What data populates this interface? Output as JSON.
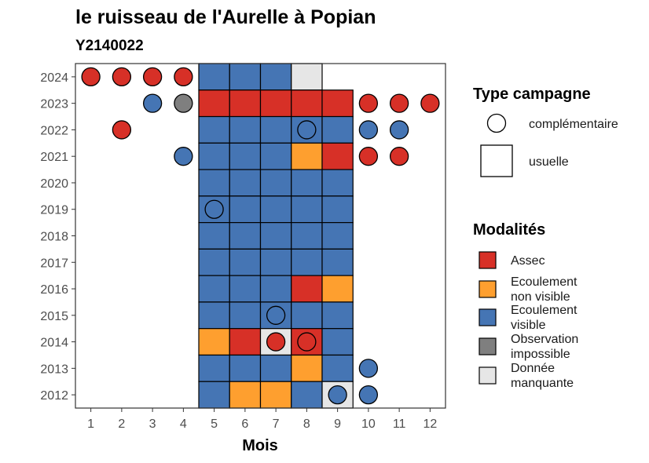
{
  "chart_data": {
    "type": "heatmap",
    "title": "le ruisseau de l'Aurelle à Popian",
    "subtitle": "Y2140022",
    "xlabel": "Mois",
    "ylabel": "",
    "x_ticks": [
      "1",
      "2",
      "3",
      "4",
      "5",
      "6",
      "7",
      "8",
      "9",
      "10",
      "11",
      "12"
    ],
    "y_ticks": [
      "2012",
      "2013",
      "2014",
      "2015",
      "2016",
      "2017",
      "2018",
      "2019",
      "2020",
      "2021",
      "2022",
      "2023",
      "2024"
    ],
    "xlim": [
      0.5,
      12.5
    ],
    "ylim": [
      2011.5,
      2024.5
    ],
    "colors": {
      "Assec": "#d73027",
      "Ecoulement non visible": "#fe9f2f",
      "Ecoulement visible": "#4575b4",
      "Observation impossible": "#7f7f7f",
      "Donnée manquante": "#e6e6e6"
    },
    "usuelle": [
      {
        "year": 2024,
        "month": 5,
        "value": "Ecoulement visible"
      },
      {
        "year": 2024,
        "month": 6,
        "value": "Ecoulement visible"
      },
      {
        "year": 2024,
        "month": 7,
        "value": "Ecoulement visible"
      },
      {
        "year": 2024,
        "month": 8,
        "value": "Donnée manquante"
      },
      {
        "year": 2023,
        "month": 5,
        "value": "Assec"
      },
      {
        "year": 2023,
        "month": 6,
        "value": "Assec"
      },
      {
        "year": 2023,
        "month": 7,
        "value": "Assec"
      },
      {
        "year": 2023,
        "month": 8,
        "value": "Assec"
      },
      {
        "year": 2023,
        "month": 9,
        "value": "Assec"
      },
      {
        "year": 2022,
        "month": 5,
        "value": "Ecoulement visible"
      },
      {
        "year": 2022,
        "month": 6,
        "value": "Ecoulement visible"
      },
      {
        "year": 2022,
        "month": 7,
        "value": "Ecoulement visible"
      },
      {
        "year": 2022,
        "month": 8,
        "value": "Ecoulement visible"
      },
      {
        "year": 2022,
        "month": 9,
        "value": "Ecoulement visible"
      },
      {
        "year": 2021,
        "month": 5,
        "value": "Ecoulement visible"
      },
      {
        "year": 2021,
        "month": 6,
        "value": "Ecoulement visible"
      },
      {
        "year": 2021,
        "month": 7,
        "value": "Ecoulement visible"
      },
      {
        "year": 2021,
        "month": 8,
        "value": "Ecoulement non visible"
      },
      {
        "year": 2021,
        "month": 9,
        "value": "Assec"
      },
      {
        "year": 2020,
        "month": 5,
        "value": "Ecoulement visible"
      },
      {
        "year": 2020,
        "month": 6,
        "value": "Ecoulement visible"
      },
      {
        "year": 2020,
        "month": 7,
        "value": "Ecoulement visible"
      },
      {
        "year": 2020,
        "month": 8,
        "value": "Ecoulement visible"
      },
      {
        "year": 2020,
        "month": 9,
        "value": "Ecoulement visible"
      },
      {
        "year": 2019,
        "month": 5,
        "value": "Ecoulement visible"
      },
      {
        "year": 2019,
        "month": 6,
        "value": "Ecoulement visible"
      },
      {
        "year": 2019,
        "month": 7,
        "value": "Ecoulement visible"
      },
      {
        "year": 2019,
        "month": 8,
        "value": "Ecoulement visible"
      },
      {
        "year": 2019,
        "month": 9,
        "value": "Ecoulement visible"
      },
      {
        "year": 2018,
        "month": 5,
        "value": "Ecoulement visible"
      },
      {
        "year": 2018,
        "month": 6,
        "value": "Ecoulement visible"
      },
      {
        "year": 2018,
        "month": 7,
        "value": "Ecoulement visible"
      },
      {
        "year": 2018,
        "month": 8,
        "value": "Ecoulement visible"
      },
      {
        "year": 2018,
        "month": 9,
        "value": "Ecoulement visible"
      },
      {
        "year": 2017,
        "month": 5,
        "value": "Ecoulement visible"
      },
      {
        "year": 2017,
        "month": 6,
        "value": "Ecoulement visible"
      },
      {
        "year": 2017,
        "month": 7,
        "value": "Ecoulement visible"
      },
      {
        "year": 2017,
        "month": 8,
        "value": "Ecoulement visible"
      },
      {
        "year": 2017,
        "month": 9,
        "value": "Ecoulement visible"
      },
      {
        "year": 2016,
        "month": 5,
        "value": "Ecoulement visible"
      },
      {
        "year": 2016,
        "month": 6,
        "value": "Ecoulement visible"
      },
      {
        "year": 2016,
        "month": 7,
        "value": "Ecoulement visible"
      },
      {
        "year": 2016,
        "month": 8,
        "value": "Assec"
      },
      {
        "year": 2016,
        "month": 9,
        "value": "Ecoulement non visible"
      },
      {
        "year": 2015,
        "month": 5,
        "value": "Ecoulement visible"
      },
      {
        "year": 2015,
        "month": 6,
        "value": "Ecoulement visible"
      },
      {
        "year": 2015,
        "month": 7,
        "value": "Ecoulement visible"
      },
      {
        "year": 2015,
        "month": 8,
        "value": "Ecoulement visible"
      },
      {
        "year": 2015,
        "month": 9,
        "value": "Ecoulement visible"
      },
      {
        "year": 2014,
        "month": 5,
        "value": "Ecoulement non visible"
      },
      {
        "year": 2014,
        "month": 6,
        "value": "Assec"
      },
      {
        "year": 2014,
        "month": 7,
        "value": "Donnée manquante"
      },
      {
        "year": 2014,
        "month": 8,
        "value": "Assec"
      },
      {
        "year": 2014,
        "month": 9,
        "value": "Ecoulement visible"
      },
      {
        "year": 2013,
        "month": 5,
        "value": "Ecoulement visible"
      },
      {
        "year": 2013,
        "month": 6,
        "value": "Ecoulement visible"
      },
      {
        "year": 2013,
        "month": 7,
        "value": "Ecoulement visible"
      },
      {
        "year": 2013,
        "month": 8,
        "value": "Ecoulement non visible"
      },
      {
        "year": 2013,
        "month": 9,
        "value": "Ecoulement visible"
      },
      {
        "year": 2012,
        "month": 5,
        "value": "Ecoulement visible"
      },
      {
        "year": 2012,
        "month": 6,
        "value": "Ecoulement non visible"
      },
      {
        "year": 2012,
        "month": 7,
        "value": "Ecoulement non visible"
      },
      {
        "year": 2012,
        "month": 8,
        "value": "Ecoulement visible"
      },
      {
        "year": 2012,
        "month": 9,
        "value": "Donnée manquante"
      }
    ],
    "complementaire": [
      {
        "year": 2024,
        "month": 1,
        "value": "Assec"
      },
      {
        "year": 2024,
        "month": 2,
        "value": "Assec"
      },
      {
        "year": 2024,
        "month": 3,
        "value": "Assec"
      },
      {
        "year": 2024,
        "month": 4,
        "value": "Assec"
      },
      {
        "year": 2023,
        "month": 3,
        "value": "Ecoulement visible"
      },
      {
        "year": 2023,
        "month": 4,
        "value": "Observation impossible"
      },
      {
        "year": 2023,
        "month": 10,
        "value": "Assec"
      },
      {
        "year": 2023,
        "month": 11,
        "value": "Assec"
      },
      {
        "year": 2023,
        "month": 12,
        "value": "Assec"
      },
      {
        "year": 2022,
        "month": 2,
        "value": "Assec"
      },
      {
        "year": 2022,
        "month": 8,
        "value": "Ecoulement visible"
      },
      {
        "year": 2022,
        "month": 10,
        "value": "Ecoulement visible"
      },
      {
        "year": 2022,
        "month": 11,
        "value": "Ecoulement visible"
      },
      {
        "year": 2021,
        "month": 4,
        "value": "Ecoulement visible"
      },
      {
        "year": 2021,
        "month": 10,
        "value": "Assec"
      },
      {
        "year": 2021,
        "month": 11,
        "value": "Assec"
      },
      {
        "year": 2019,
        "month": 5,
        "value": "Ecoulement visible"
      },
      {
        "year": 2015,
        "month": 7,
        "value": "Ecoulement visible"
      },
      {
        "year": 2014,
        "month": 7,
        "value": "Assec"
      },
      {
        "year": 2014,
        "month": 8,
        "value": "Assec"
      },
      {
        "year": 2013,
        "month": 10,
        "value": "Ecoulement visible"
      },
      {
        "year": 2012,
        "month": 9,
        "value": "Ecoulement visible"
      },
      {
        "year": 2012,
        "month": 10,
        "value": "Ecoulement visible"
      }
    ],
    "legend_type": {
      "title": "Type campagne",
      "items": [
        {
          "shape": "circle",
          "label": "complémentaire"
        },
        {
          "shape": "square",
          "label": "usuelle"
        }
      ]
    },
    "legend_modalites": {
      "title": "Modalités",
      "items": [
        {
          "key": "Assec",
          "lines": [
            "Assec"
          ]
        },
        {
          "key": "Ecoulement non visible",
          "lines": [
            "Ecoulement",
            "non visible"
          ]
        },
        {
          "key": "Ecoulement visible",
          "lines": [
            "Ecoulement",
            "visible"
          ]
        },
        {
          "key": "Observation impossible",
          "lines": [
            "Observation",
            "impossible"
          ]
        },
        {
          "key": "Donnée manquante",
          "lines": [
            "Donnée",
            "manquante"
          ]
        }
      ]
    }
  }
}
